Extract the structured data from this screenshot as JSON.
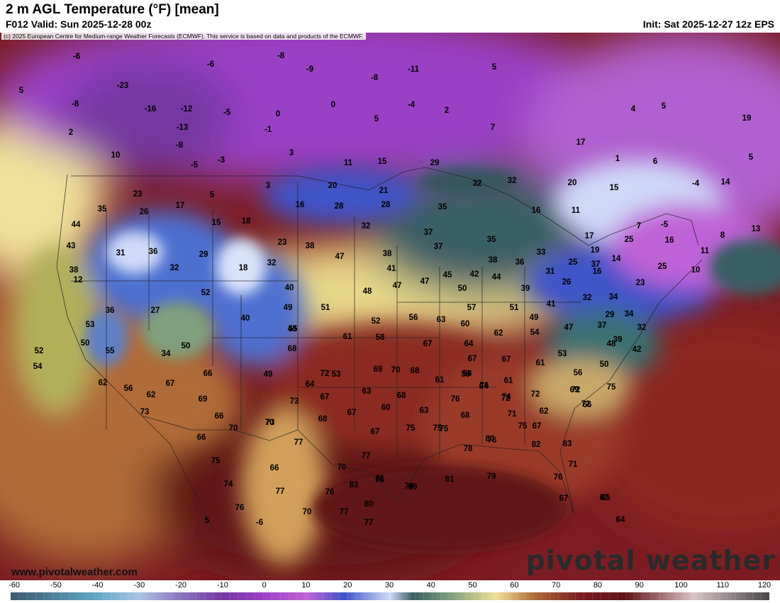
{
  "header": {
    "title": "2 m AGL Temperature (°F) [mean]",
    "valid": "F012 Valid: Sun 2025-12-28 00z",
    "init": "Init: Sat 2025-12-27 12z EPS"
  },
  "map": {
    "copyright": "(c) 2025 European Centre for Medium-range Weather Forecasts (ECMWF). This service is based on data and products of the ECMWF.",
    "site_url": "www.pivotalweather.com",
    "brand": "pivotal weather",
    "variable": "2 m AGL Temperature",
    "units": "°F",
    "point_values": [
      {
        "id": "p1",
        "value": -6
      },
      {
        "id": "p2",
        "value": -6
      },
      {
        "id": "p3",
        "value": -8
      },
      {
        "id": "p4",
        "value": -9
      },
      {
        "id": "p5",
        "value": -11
      },
      {
        "id": "p6",
        "value": 5
      },
      {
        "id": "p7",
        "value": -23
      },
      {
        "id": "p8",
        "value": -8
      },
      {
        "id": "p9",
        "value": -8
      },
      {
        "id": "p10",
        "value": 0
      },
      {
        "id": "p11",
        "value": -4
      },
      {
        "id": "p12",
        "value": 2
      },
      {
        "id": "p13",
        "value": 5
      },
      {
        "id": "p14",
        "value": -16
      },
      {
        "id": "p15",
        "value": -12
      },
      {
        "id": "p16",
        "value": -5
      },
      {
        "id": "p17",
        "value": 0
      },
      {
        "id": "p18",
        "value": 5
      },
      {
        "id": "p19",
        "value": 7
      },
      {
        "id": "p20",
        "value": 4
      },
      {
        "id": "p21",
        "value": 5
      },
      {
        "id": "p22",
        "value": 19
      },
      {
        "id": "p23",
        "value": 2
      },
      {
        "id": "p24",
        "value": -13
      },
      {
        "id": "p25",
        "value": -1
      },
      {
        "id": "p26",
        "value": -8
      },
      {
        "id": "p27",
        "value": 10
      },
      {
        "id": "p28",
        "value": -5
      },
      {
        "id": "p29",
        "value": -3
      },
      {
        "id": "p30",
        "value": 3
      },
      {
        "id": "p31",
        "value": 11
      },
      {
        "id": "p32",
        "value": 15
      },
      {
        "id": "p33",
        "value": 29
      },
      {
        "id": "p34",
        "value": 17
      },
      {
        "id": "p35",
        "value": 1
      },
      {
        "id": "p36",
        "value": 6
      },
      {
        "id": "p37",
        "value": 5
      },
      {
        "id": "p38",
        "value": 23
      },
      {
        "id": "p39",
        "value": 5
      },
      {
        "id": "p40",
        "value": 3
      },
      {
        "id": "p41",
        "value": 20
      },
      {
        "id": "p42",
        "value": 21
      },
      {
        "id": "p43",
        "value": 32
      },
      {
        "id": "p44",
        "value": 32
      },
      {
        "id": "p45",
        "value": 20
      },
      {
        "id": "p46",
        "value": 15
      },
      {
        "id": "p47",
        "value": -4
      },
      {
        "id": "p48",
        "value": 14
      },
      {
        "id": "p49",
        "value": 17
      },
      {
        "id": "p50",
        "value": 16
      },
      {
        "id": "p51",
        "value": 28
      },
      {
        "id": "p52",
        "value": 28
      },
      {
        "id": "p53",
        "value": 35
      },
      {
        "id": "p54",
        "value": 16
      },
      {
        "id": "p55",
        "value": 11
      },
      {
        "id": "p56",
        "value": 35
      },
      {
        "id": "p57",
        "value": 26
      },
      {
        "id": "p58",
        "value": 44
      },
      {
        "id": "p59",
        "value": 15
      },
      {
        "id": "p60",
        "value": 18
      },
      {
        "id": "p61",
        "value": 32
      },
      {
        "id": "p62",
        "value": 37
      },
      {
        "id": "p63",
        "value": 7
      },
      {
        "id": "p64",
        "value": -5
      },
      {
        "id": "p65",
        "value": 13
      },
      {
        "id": "p66",
        "value": 43
      },
      {
        "id": "p67",
        "value": 31
      },
      {
        "id": "p68",
        "value": 36
      },
      {
        "id": "p69",
        "value": 29
      },
      {
        "id": "p70",
        "value": 23
      },
      {
        "id": "p71",
        "value": 38
      },
      {
        "id": "p72",
        "value": 47
      },
      {
        "id": "p73",
        "value": 38
      },
      {
        "id": "p74",
        "value": 37
      },
      {
        "id": "p75",
        "value": 35
      },
      {
        "id": "p76",
        "value": 17
      },
      {
        "id": "p77",
        "value": 16
      },
      {
        "id": "p78",
        "value": 8
      },
      {
        "id": "p79",
        "value": 11
      },
      {
        "id": "p80",
        "value": 38
      },
      {
        "id": "p81",
        "value": 32
      },
      {
        "id": "p82",
        "value": 18
      },
      {
        "id": "p83",
        "value": 32
      },
      {
        "id": "p84",
        "value": 41
      },
      {
        "id": "p85",
        "value": 38
      },
      {
        "id": "p86",
        "value": 36
      },
      {
        "id": "p87",
        "value": 33
      },
      {
        "id": "p88",
        "value": 19
      },
      {
        "id": "p89",
        "value": 14
      },
      {
        "id": "p90",
        "value": 25
      },
      {
        "id": "p91",
        "value": 25
      },
      {
        "id": "p92",
        "value": 10
      },
      {
        "id": "p93",
        "value": 12
      },
      {
        "id": "p94",
        "value": 52
      },
      {
        "id": "p95",
        "value": 37
      },
      {
        "id": "p96",
        "value": 40
      },
      {
        "id": "p97",
        "value": 48
      },
      {
        "id": "p98",
        "value": 47
      },
      {
        "id": "p99",
        "value": 47
      },
      {
        "id": "p100",
        "value": 45
      },
      {
        "id": "p101",
        "value": 42
      },
      {
        "id": "p102",
        "value": 44
      },
      {
        "id": "p103",
        "value": 31
      },
      {
        "id": "p104",
        "value": 25
      },
      {
        "id": "p105",
        "value": 16
      },
      {
        "id": "p106",
        "value": 36
      },
      {
        "id": "p107",
        "value": 27
      },
      {
        "id": "p108",
        "value": 49
      },
      {
        "id": "p109",
        "value": 51
      },
      {
        "id": "p110",
        "value": 50
      },
      {
        "id": "p111",
        "value": 39
      },
      {
        "id": "p112",
        "value": 34
      },
      {
        "id": "p113",
        "value": 26
      },
      {
        "id": "p114",
        "value": 23
      },
      {
        "id": "p115",
        "value": 53
      },
      {
        "id": "p116",
        "value": 40
      },
      {
        "id": "p117",
        "value": 55
      },
      {
        "id": "p118",
        "value": 52
      },
      {
        "id": "p119",
        "value": 56
      },
      {
        "id": "p120",
        "value": 63
      },
      {
        "id": "p121",
        "value": 57
      },
      {
        "id": "p122",
        "value": 51
      },
      {
        "id": "p123",
        "value": 41
      },
      {
        "id": "p124",
        "value": 32
      },
      {
        "id": "p125",
        "value": 29
      },
      {
        "id": "p126",
        "value": 50
      },
      {
        "id": "p127",
        "value": 61
      },
      {
        "id": "p128",
        "value": 58
      },
      {
        "id": "p129",
        "value": 60
      },
      {
        "id": "p130",
        "value": 49
      },
      {
        "id": "p131",
        "value": 34
      },
      {
        "id": "p132",
        "value": 32
      },
      {
        "id": "p133",
        "value": 50
      },
      {
        "id": "p134",
        "value": 55
      },
      {
        "id": "p135",
        "value": 48
      },
      {
        "id": "p136",
        "value": 67
      },
      {
        "id": "p137",
        "value": 62
      },
      {
        "id": "p138",
        "value": 54
      },
      {
        "id": "p139",
        "value": 47
      },
      {
        "id": "p140",
        "value": 37
      },
      {
        "id": "p141",
        "value": 52
      },
      {
        "id": "p142",
        "value": 64
      },
      {
        "id": "p143",
        "value": 48
      },
      {
        "id": "p144",
        "value": 39
      },
      {
        "id": "p145",
        "value": 42
      },
      {
        "id": "p146",
        "value": 54
      },
      {
        "id": "p147",
        "value": 34
      },
      {
        "id": "p148",
        "value": 68
      },
      {
        "id": "p149",
        "value": 67
      },
      {
        "id": "p150",
        "value": 53
      },
      {
        "id": "p151",
        "value": 61
      },
      {
        "id": "p152",
        "value": 50
      },
      {
        "id": "p153",
        "value": 56
      },
      {
        "id": "p154",
        "value": 49
      },
      {
        "id": "p155",
        "value": 67
      },
      {
        "id": "p156",
        "value": 72
      },
      {
        "id": "p157",
        "value": 69
      },
      {
        "id": "p158",
        "value": 70
      },
      {
        "id": "p159",
        "value": 68
      },
      {
        "id": "p160",
        "value": 61
      },
      {
        "id": "p161",
        "value": 59
      },
      {
        "id": "p162",
        "value": 62
      },
      {
        "id": "p163",
        "value": 56
      },
      {
        "id": "p164",
        "value": 62
      },
      {
        "id": "p165",
        "value": 67
      },
      {
        "id": "p166",
        "value": 66
      },
      {
        "id": "p167",
        "value": 64
      },
      {
        "id": "p168",
        "value": 53
      },
      {
        "id": "p169",
        "value": 58
      },
      {
        "id": "p170",
        "value": 64
      },
      {
        "id": "p171",
        "value": 61
      },
      {
        "id": "p172",
        "value": 72
      },
      {
        "id": "p173",
        "value": 75
      },
      {
        "id": "p174",
        "value": 73
      },
      {
        "id": "p175",
        "value": 69
      },
      {
        "id": "p176",
        "value": 66
      },
      {
        "id": "p177",
        "value": 67
      },
      {
        "id": "p178",
        "value": 63
      },
      {
        "id": "p179",
        "value": 68
      },
      {
        "id": "p180",
        "value": 76
      },
      {
        "id": "p181",
        "value": 76
      },
      {
        "id": "p182",
        "value": 72
      },
      {
        "id": "p183",
        "value": 72
      },
      {
        "id": "p184",
        "value": 69
      },
      {
        "id": "p185",
        "value": 66
      },
      {
        "id": "p186",
        "value": 67
      },
      {
        "id": "p187",
        "value": 60
      },
      {
        "id": "p188",
        "value": 63
      },
      {
        "id": "p189",
        "value": 75
      },
      {
        "id": "p190",
        "value": 68
      },
      {
        "id": "p191",
        "value": 74
      },
      {
        "id": "p192",
        "value": 62
      },
      {
        "id": "p193",
        "value": 71
      },
      {
        "id": "p194",
        "value": 72
      },
      {
        "id": "p195",
        "value": 68
      },
      {
        "id": "p196",
        "value": 73
      },
      {
        "id": "p197",
        "value": 70
      },
      {
        "id": "p198",
        "value": 70
      },
      {
        "id": "p199",
        "value": 66
      },
      {
        "id": "p200",
        "value": 67
      },
      {
        "id": "p201",
        "value": 67
      },
      {
        "id": "p202",
        "value": 75
      },
      {
        "id": "p203",
        "value": 75
      },
      {
        "id": "p204",
        "value": 80
      },
      {
        "id": "p205",
        "value": 75
      },
      {
        "id": "p206",
        "value": 82
      },
      {
        "id": "p207",
        "value": 83
      },
      {
        "id": "p208",
        "value": 73
      },
      {
        "id": "p209",
        "value": 77
      },
      {
        "id": "p210",
        "value": 77
      },
      {
        "id": "p211",
        "value": 75
      },
      {
        "id": "p212",
        "value": 66
      },
      {
        "id": "p213",
        "value": 70
      },
      {
        "id": "p214",
        "value": 81
      },
      {
        "id": "p215",
        "value": 69
      },
      {
        "id": "p216",
        "value": 81
      },
      {
        "id": "p217",
        "value": 79
      },
      {
        "id": "p218",
        "value": 76
      },
      {
        "id": "p219",
        "value": 78
      },
      {
        "id": "p220",
        "value": 71
      },
      {
        "id": "p221",
        "value": 74
      },
      {
        "id": "p222",
        "value": 77
      },
      {
        "id": "p223",
        "value": 76
      },
      {
        "id": "p224",
        "value": 83
      },
      {
        "id": "p225",
        "value": 75
      },
      {
        "id": "p226",
        "value": 76
      },
      {
        "id": "p227",
        "value": 76
      },
      {
        "id": "p228",
        "value": 67
      },
      {
        "id": "p229",
        "value": 64
      },
      {
        "id": "p230",
        "value": 80
      },
      {
        "id": "p231",
        "value": 76
      },
      {
        "id": "p232",
        "value": 70
      },
      {
        "id": "p233",
        "value": 77
      },
      {
        "id": "p234",
        "value": 77
      },
      {
        "id": "p235",
        "value": 67
      },
      {
        "id": "p236",
        "value": 85
      },
      {
        "id": "p237",
        "value": 5
      },
      {
        "id": "p238",
        "value": -6
      }
    ]
  },
  "colorbar": {
    "ticks": [
      "-60",
      "-50",
      "-40",
      "-30",
      "-20",
      "-10",
      "0",
      "10",
      "20",
      "30",
      "40",
      "50",
      "60",
      "70",
      "80",
      "90",
      "100",
      "110",
      "120"
    ],
    "min": -60,
    "max": 120,
    "step": 10
  },
  "colors": {
    "c_m60": "#3e5a6e",
    "c_m40": "#5fa5c2",
    "c_m30": "#a9c4e2",
    "c_m20": "#8d79c2",
    "c_m10": "#7338a3",
    "c_0": "#9a3fc4",
    "c_10": "#c062d8",
    "c_20": "#3f55c8",
    "c_30": "#cfdaf7",
    "c_35": "#3b5f66",
    "c_45": "#7fa07c",
    "c_55": "#f0e19a",
    "c_65": "#b06a38",
    "c_75": "#7b1d22",
    "c_85": "#611313",
    "c_120": "#474747"
  }
}
